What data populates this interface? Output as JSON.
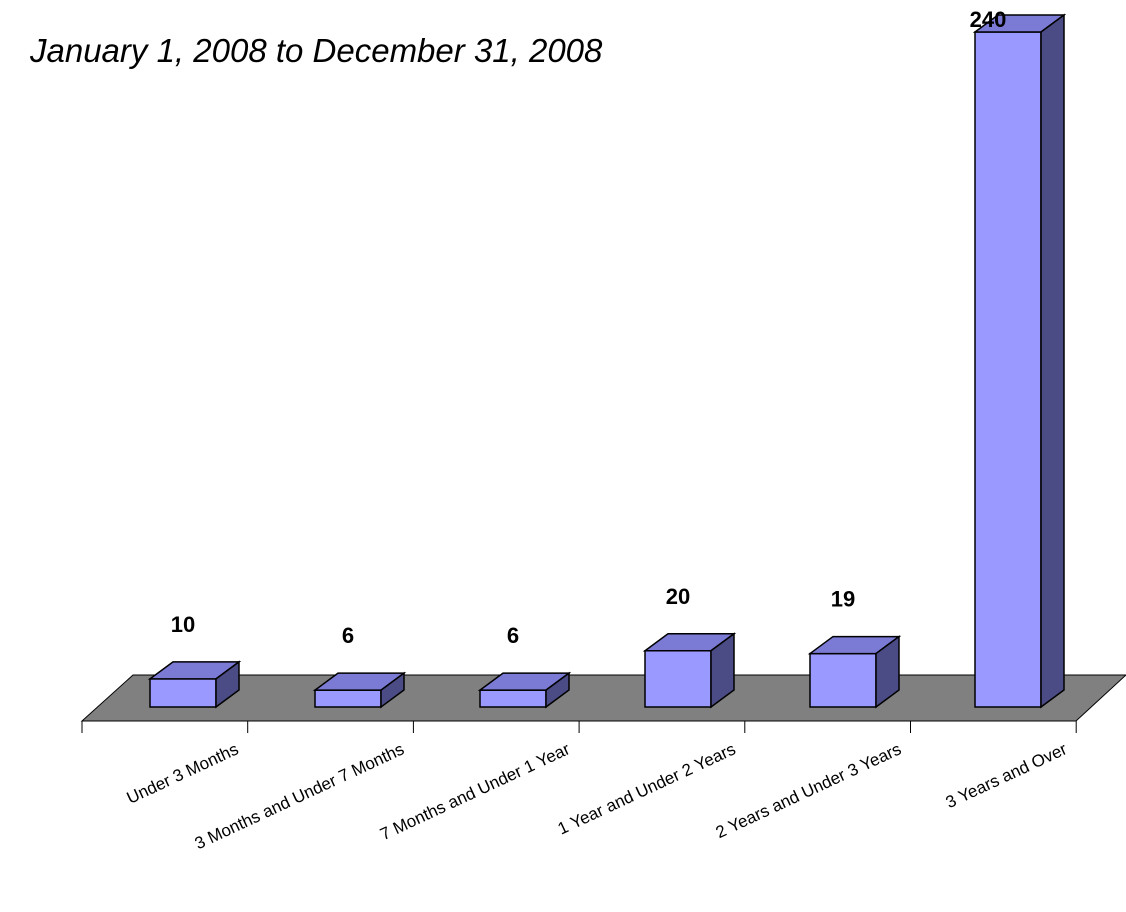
{
  "chart_data": {
    "type": "bar",
    "title": "January 1, 2008 to December 31, 2008",
    "xlabel": "",
    "ylabel": "",
    "categories": [
      "Under 3 Months",
      "3 Months and Under 7 Months",
      "7 Months and Under 1 Year",
      "1 Year and Under 2 Years",
      "2 Years and Under 3 Years",
      "3 Years and Over"
    ],
    "values": [
      10,
      6,
      6,
      20,
      19,
      240
    ],
    "ylim": [
      0,
      240
    ],
    "grid": false,
    "legend": "none",
    "style": "3d-column"
  },
  "colors": {
    "bar_front": "#9999ff",
    "bar_top": "#7b7bd6",
    "bar_side": "#4b4b85",
    "floor": "#808080"
  }
}
